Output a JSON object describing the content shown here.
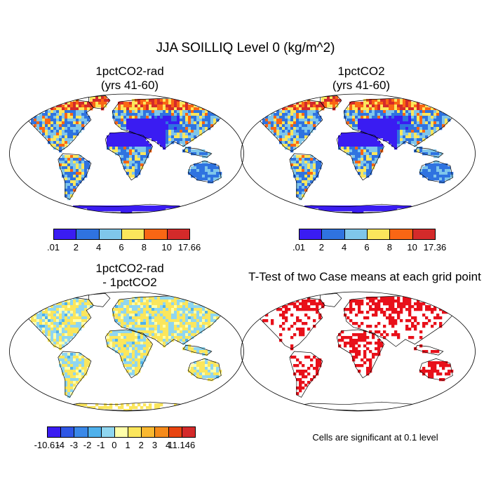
{
  "main_title": "JJA SOILLIQ Level 0 (kg/m^2)",
  "panels": [
    {
      "title_line1": "1pctCO2-rad",
      "title_line2": "(yrs 41-60)",
      "style": "full"
    },
    {
      "title_line1": "1pctCO2",
      "title_line2": "(yrs 41-60)",
      "style": "full"
    },
    {
      "title_line1": "1pctCO2-rad",
      "title_line2": "- 1pctCO2",
      "style": "diff"
    },
    {
      "title_line1": "T-Test of two Case means at each grid point",
      "title_line2": "",
      "style": "ttest"
    }
  ],
  "colorbars": [
    {
      "colors": [
        "#3a1cf2",
        "#2f73e0",
        "#7fc6ea",
        "#fbe65c",
        "#fa6614",
        "#d42a2a"
      ],
      "labels": [
        ".01",
        "2",
        "4",
        "6",
        "8",
        "10",
        "17.66"
      ]
    },
    {
      "colors": [
        "#3a1cf2",
        "#2f73e0",
        "#7fc6ea",
        "#fbe65c",
        "#fa6614",
        "#d42a2a"
      ],
      "labels": [
        ".01",
        "2",
        "4",
        "6",
        "8",
        "10",
        "17.36"
      ]
    },
    {
      "colors": [
        "#3a1cf2",
        "#2f56e6",
        "#3a88e8",
        "#4fb1ec",
        "#8fd6f0",
        "#ffffaa",
        "#fbe65c",
        "#f9b830",
        "#f58a1a",
        "#e84410",
        "#d42a2a"
      ],
      "labels": [
        "-10.61",
        "-4",
        "-3",
        "-2",
        "-1",
        "0",
        "1",
        "2",
        "3",
        "4",
        "11.146"
      ]
    }
  ],
  "significance_note": "Cells are significant at 0.1 level"
}
